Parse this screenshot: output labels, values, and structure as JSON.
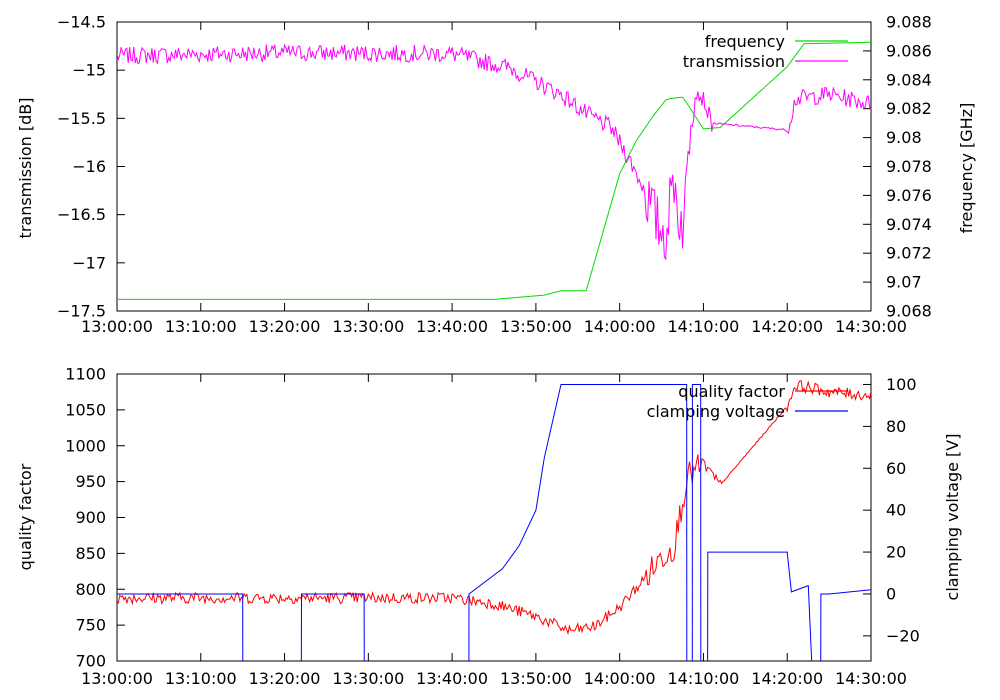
{
  "chart_data": [
    {
      "type": "line",
      "x_ticks": [
        "13:00:00",
        "13:10:00",
        "13:20:00",
        "13:30:00",
        "13:40:00",
        "13:50:00",
        "14:00:00",
        "14:10:00",
        "14:20:00",
        "14:30:00"
      ],
      "xlim": [
        "13:00:00",
        "14:30:00"
      ],
      "ylabel": "transmission [dB]",
      "y2label": "frequency [GHz]",
      "ylim": [
        -17.5,
        -14.5
      ],
      "y_ticks": [
        "-14.5",
        "-15",
        "-15.5",
        "-16",
        "-16.5",
        "-17",
        "-17.5"
      ],
      "y2lim": [
        9.068,
        9.088
      ],
      "y2_ticks": [
        "9.088",
        "9.086",
        "9.084",
        "9.082",
        "9.08",
        "9.078",
        "9.076",
        "9.074",
        "9.072",
        "9.07",
        "9.068"
      ],
      "legend": "top-right",
      "series": [
        {
          "name": "frequency",
          "axis": "right",
          "color": "#00dd00",
          "x": [
            "13:00:00",
            "13:30:00",
            "13:45:00",
            "13:51:00",
            "13:53:00",
            "13:56:00",
            "14:00:00",
            "14:02:00",
            "14:04:00",
            "14:05:30",
            "14:06:00",
            "14:07:30",
            "14:08:00",
            "14:10:00",
            "14:12:00",
            "14:20:00",
            "14:22:00",
            "14:30:00"
          ],
          "y": [
            9.0688,
            9.0688,
            9.0688,
            9.0691,
            9.0694,
            9.0694,
            9.0775,
            9.0798,
            9.0815,
            9.0826,
            9.0827,
            9.0828,
            9.0824,
            9.0806,
            9.0807,
            9.0849,
            9.0865,
            9.0866
          ]
        },
        {
          "name": "transmission",
          "axis": "left",
          "color": "#ff00ff",
          "x": [
            "13:00:00",
            "13:20:00",
            "13:40:00",
            "13:47:00",
            "13:50:00",
            "13:53:00",
            "13:56:00",
            "13:59:00",
            "14:01:00",
            "14:03:00",
            "14:04:30",
            "14:05:30",
            "14:06:30",
            "14:07:00",
            "14:07:40",
            "14:08:30",
            "14:09:00",
            "14:10:00",
            "14:11:00",
            "14:20:00",
            "14:21:00",
            "14:25:00",
            "14:30:00"
          ],
          "y": [
            -14.85,
            -14.82,
            -14.83,
            -14.98,
            -15.12,
            -15.25,
            -15.45,
            -15.6,
            -15.9,
            -16.25,
            -16.6,
            -16.7,
            -16.1,
            -16.5,
            -16.6,
            -15.4,
            -15.2,
            -15.3,
            -15.55,
            -15.62,
            -15.3,
            -15.25,
            -15.35
          ]
        }
      ]
    },
    {
      "type": "line",
      "x_ticks": [
        "13:00:00",
        "13:10:00",
        "13:20:00",
        "13:30:00",
        "13:40:00",
        "13:50:00",
        "14:00:00",
        "14:10:00",
        "14:20:00",
        "14:30:00"
      ],
      "xlim": [
        "13:00:00",
        "14:30:00"
      ],
      "ylabel": "quality factor",
      "y2label": "clamping voltage [V]",
      "ylim": [
        700,
        1100
      ],
      "y_ticks": [
        "1100",
        "1050",
        "1000",
        "950",
        "900",
        "850",
        "800",
        "750",
        "700"
      ],
      "y2lim": [
        -32,
        105
      ],
      "y2_ticks": [
        "100",
        "80",
        "60",
        "40",
        "20",
        "0",
        "-20"
      ],
      "legend": "top-right",
      "series": [
        {
          "name": "quality factor",
          "axis": "left",
          "color": "#ff0000",
          "x": [
            "13:00:00",
            "13:20:00",
            "13:40:00",
            "13:45:00",
            "13:50:00",
            "13:54:00",
            "13:57:00",
            "14:00:00",
            "14:03:00",
            "14:05:00",
            "14:06:30",
            "14:08:00",
            "14:09:00",
            "14:10:00",
            "14:12:00",
            "14:20:00",
            "14:21:00",
            "14:25:00",
            "14:30:00"
          ],
          "y": [
            788,
            788,
            788,
            780,
            762,
            742,
            748,
            775,
            815,
            845,
            860,
            955,
            965,
            975,
            945,
            1055,
            1085,
            1075,
            1070
          ]
        },
        {
          "name": "clamping voltage",
          "axis": "right",
          "color": "#0000ff",
          "x": [
            "13:00:00",
            "13:15:00",
            "13:15:01",
            "13:22:00",
            "13:22:01",
            "13:29:30",
            "13:29:31",
            "13:42:00",
            "13:42:01",
            "13:46:00",
            "13:48:00",
            "13:50:00",
            "13:51:00",
            "13:53:00",
            "14:08:00",
            "14:08:01",
            "14:08:40",
            "14:08:41",
            "14:09:40",
            "14:09:41",
            "14:10:30",
            "14:10:31",
            "14:20:00",
            "14:20:30",
            "14:22:30",
            "14:22:31",
            "14:23:00",
            "14:24:00",
            "14:24:01",
            "14:25:00",
            "14:30:00"
          ],
          "y": [
            0,
            0,
            -40,
            -40,
            0,
            0,
            -40,
            -40,
            0,
            12,
            23,
            40,
            65,
            100,
            100,
            -40,
            -40,
            100,
            100,
            -40,
            -40,
            20,
            20,
            1,
            4,
            4,
            -40,
            -40,
            0,
            0,
            2
          ]
        }
      ]
    }
  ]
}
